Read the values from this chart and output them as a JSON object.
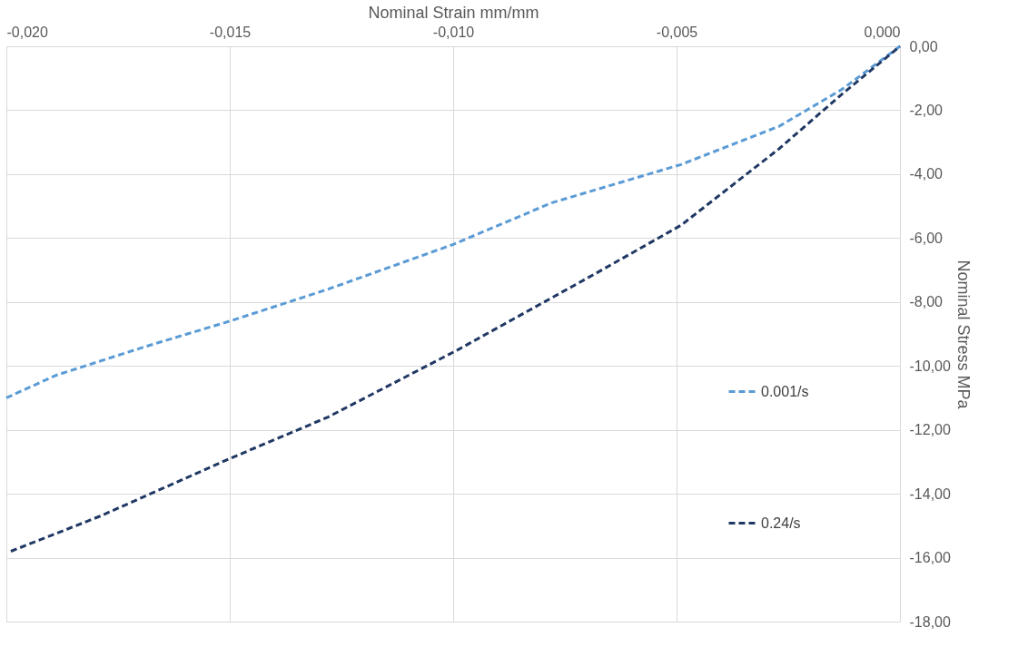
{
  "chart_data": {
    "type": "line",
    "xlabel": "Nominal Strain mm/mm",
    "ylabel": "Nominal Stress MPa",
    "xlim": [
      -0.02,
      0
    ],
    "ylim": [
      -18,
      0
    ],
    "xticks": [
      {
        "value": -0.02,
        "label": "-0,020"
      },
      {
        "value": -0.015,
        "label": "-0,015"
      },
      {
        "value": -0.01,
        "label": "-0,010"
      },
      {
        "value": -0.005,
        "label": "-0,005"
      },
      {
        "value": 0,
        "label": "0,000"
      }
    ],
    "yticks": [
      {
        "value": 0,
        "label": "0,00"
      },
      {
        "value": -2,
        "label": "-2,00"
      },
      {
        "value": -4,
        "label": "-4,00"
      },
      {
        "value": -6,
        "label": "-6,00"
      },
      {
        "value": -8,
        "label": "-8,00"
      },
      {
        "value": -10,
        "label": "-10,00"
      },
      {
        "value": -12,
        "label": "-12,00"
      },
      {
        "value": -14,
        "label": "-14,00"
      },
      {
        "value": -16,
        "label": "-16,00"
      },
      {
        "value": -18,
        "label": "-18,00"
      }
    ],
    "grid": true,
    "legend": "bottom right",
    "marker": "none",
    "line_style": "dashed",
    "series": [
      {
        "name": "0.001/s",
        "color": "#5b9bd5",
        "x": [
          -0.02,
          -0.0189,
          -0.0169,
          -0.015,
          -0.0128,
          -0.01,
          -0.0078,
          -0.0049,
          -0.0027,
          -0.0013,
          0
        ],
        "values": [
          -11.0,
          -10.3,
          -9.4,
          -8.6,
          -7.6,
          -6.2,
          -4.9,
          -3.7,
          -2.5,
          -1.35,
          0
        ]
      },
      {
        "name": "0.24/s",
        "color": "#203864",
        "x": [
          -0.0199,
          -0.0179,
          -0.015,
          -0.0128,
          -0.0099,
          -0.0068,
          -0.0049,
          -0.0027,
          -0.0013,
          0
        ],
        "values": [
          -15.8,
          -14.7,
          -12.9,
          -11.6,
          -9.5,
          -7.1,
          -5.6,
          -3.2,
          -1.5,
          0
        ]
      }
    ]
  }
}
